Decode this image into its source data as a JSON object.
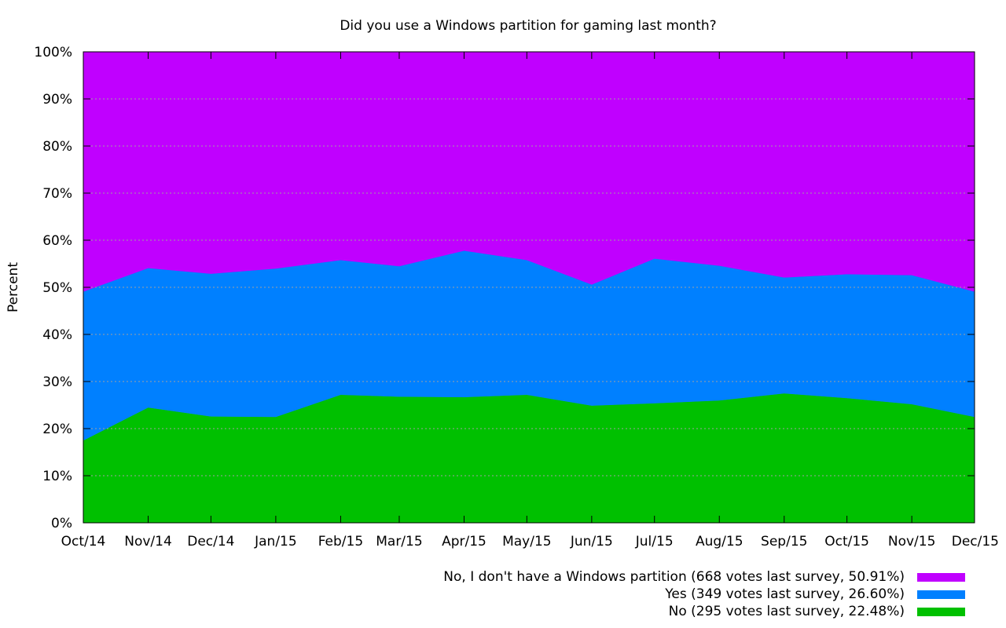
{
  "chart_data": {
    "type": "area",
    "stacked": true,
    "title": "Did you use a Windows partition for gaming last month?",
    "xlabel": "",
    "ylabel": "Percent",
    "categories": [
      "Oct/14",
      "Nov/14",
      "Dec/14",
      "Jan/15",
      "Feb/15",
      "Mar/15",
      "Apr/15",
      "May/15",
      "Jun/15",
      "Jul/15",
      "Aug/15",
      "Sep/15",
      "Oct/15",
      "Nov/15",
      "Dec/15"
    ],
    "x_days": [
      0,
      31,
      61,
      92,
      123,
      151,
      182,
      212,
      243,
      273,
      304,
      335,
      365,
      396,
      426
    ],
    "ylim": [
      0,
      100
    ],
    "yticks": [
      "0%",
      "10%",
      "20%",
      "30%",
      "40%",
      "50%",
      "60%",
      "70%",
      "80%",
      "90%",
      "100%"
    ],
    "grid": true,
    "legend_position": "bottom-right",
    "series": [
      {
        "name": "No (295 votes last survey, 22.48%)",
        "color": "#00c000",
        "values": [
          17.5,
          24.5,
          22.6,
          22.5,
          27.2,
          26.8,
          26.7,
          27.2,
          24.9,
          25.4,
          26.0,
          27.5,
          26.5,
          25.2,
          22.5
        ]
      },
      {
        "name": "Yes (349 votes last survey, 26.60%)",
        "color": "#0080ff",
        "values": [
          31.6,
          29.6,
          30.3,
          31.5,
          28.6,
          27.7,
          31.1,
          28.6,
          25.7,
          30.7,
          28.6,
          24.6,
          26.3,
          27.4,
          26.6
        ]
      },
      {
        "name": "No, I don't have a Windows partition (668 votes last survey, 50.91%)",
        "color": "#c000ff",
        "values": [
          50.9,
          45.9,
          47.1,
          46.0,
          44.2,
          45.5,
          42.2,
          44.2,
          49.4,
          43.9,
          45.4,
          47.9,
          47.2,
          47.4,
          50.9
        ]
      }
    ]
  }
}
